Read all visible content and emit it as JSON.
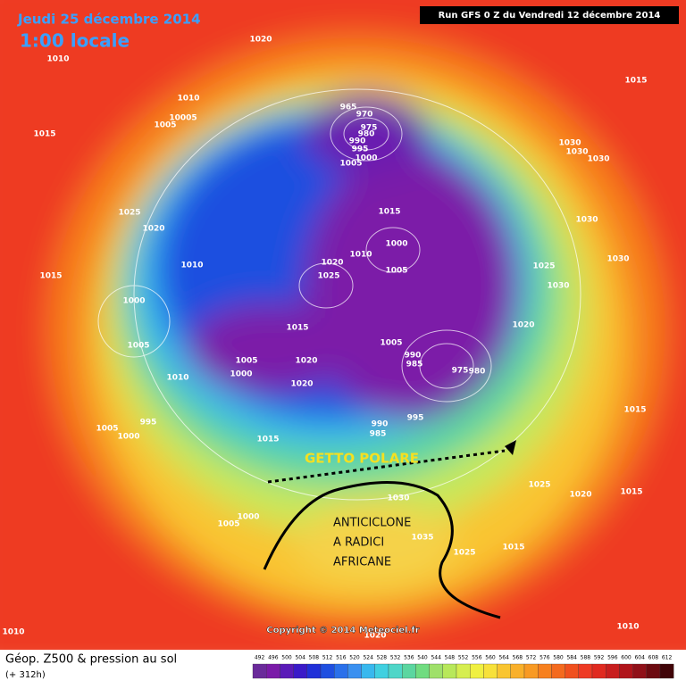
{
  "header": {
    "date": "Jeudi 25 décembre 2014",
    "time": "1:00 locale",
    "run": "Run GFS 0 Z du Vendredi 12 décembre 2014"
  },
  "annotations": {
    "jet": "GETTO POLARE",
    "anticyclone": [
      "ANTICICLONE",
      "A RADICI",
      "AFRICANE"
    ]
  },
  "isobar_labels": [
    "1020",
    "1010",
    "1010",
    "10005",
    "1005",
    "1015",
    "965",
    "970",
    "975",
    "980",
    "990",
    "995",
    "1000",
    "1005",
    "1015",
    "1030",
    "1030",
    "1030",
    "1025",
    "1020",
    "1015",
    "1000",
    "1010",
    "1005",
    "1020",
    "1025",
    "1010",
    "1030",
    "1030",
    "1025",
    "1030",
    "1015",
    "1000",
    "1015",
    "1005",
    "1020",
    "1005",
    "990",
    "985",
    "975",
    "980",
    "1005",
    "1020",
    "1000",
    "1010",
    "1020",
    "1015",
    "995",
    "1005",
    "1000",
    "990",
    "985",
    "995",
    "1015",
    "1025",
    "1020",
    "1015",
    "1030",
    "1005",
    "1000",
    "1035",
    "1025",
    "1015",
    "1010",
    "1010",
    "1020"
  ],
  "copyright": "Copyright © 2014 Meteociel.fr",
  "footer": {
    "title": "Géop. Z500 & pression au sol",
    "lead": "(+ 312h)"
  },
  "legend": {
    "values": [
      492,
      496,
      500,
      504,
      508,
      512,
      516,
      520,
      524,
      528,
      532,
      536,
      540,
      544,
      548,
      552,
      556,
      560,
      564,
      568,
      572,
      576,
      580,
      584,
      588,
      592,
      596,
      600,
      604,
      608,
      612
    ]
  }
}
